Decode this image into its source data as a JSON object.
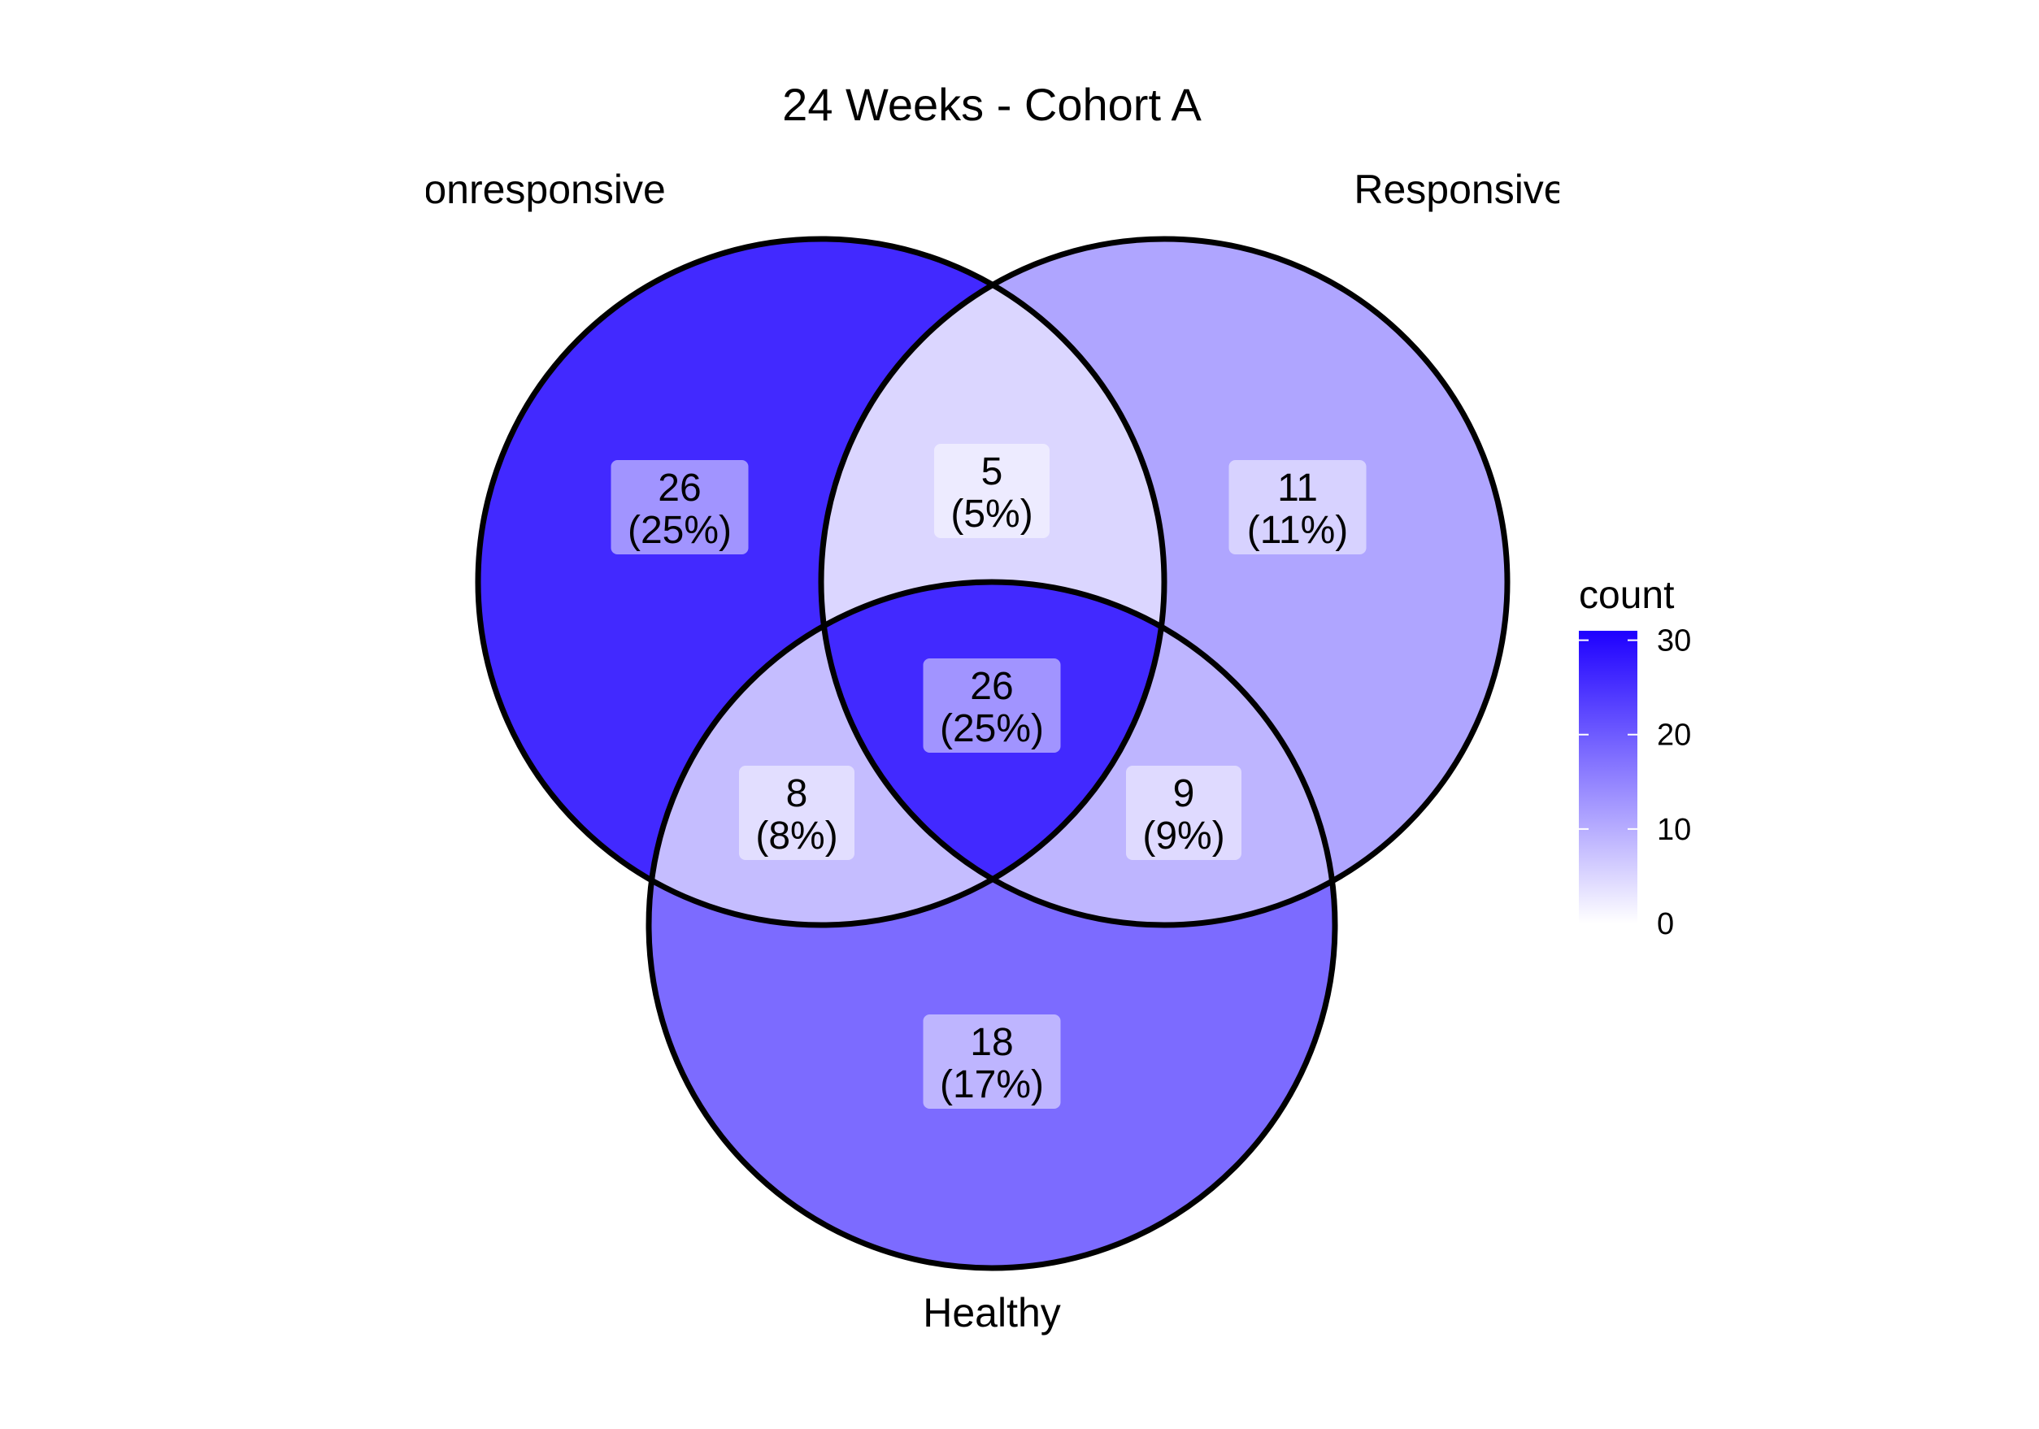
{
  "chart_data": {
    "type": "venn",
    "title": "24 Weeks - Cohort A",
    "sets": [
      "Nonresponsive",
      "Responsive",
      "Healthy"
    ],
    "regions": [
      {
        "sets": [
          "Nonresponsive"
        ],
        "count": 26,
        "label": "(25%)"
      },
      {
        "sets": [
          "Responsive"
        ],
        "count": 11,
        "label": "(11%)"
      },
      {
        "sets": [
          "Healthy"
        ],
        "count": 18,
        "label": "(17%)"
      },
      {
        "sets": [
          "Nonresponsive",
          "Responsive"
        ],
        "count": 5,
        "label": "(5%)"
      },
      {
        "sets": [
          "Nonresponsive",
          "Healthy"
        ],
        "count": 8,
        "label": "(8%)"
      },
      {
        "sets": [
          "Responsive",
          "Healthy"
        ],
        "count": 9,
        "label": "(9%)"
      },
      {
        "sets": [
          "Nonresponsive",
          "Responsive",
          "Healthy"
        ],
        "count": 26,
        "label": "(25%)"
      }
    ],
    "legend": {
      "title": "count",
      "ticks": [
        "0",
        "10",
        "20",
        "30"
      ],
      "range": [
        0,
        31
      ],
      "color_low": "#ffffff",
      "color_high": "#1e00ff",
      "position": "right"
    }
  }
}
